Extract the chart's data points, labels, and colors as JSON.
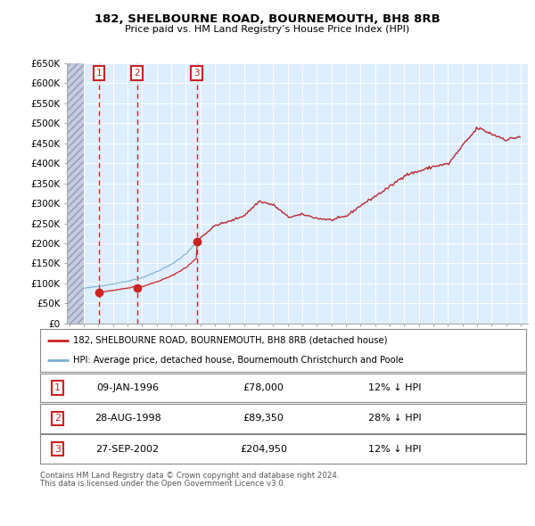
{
  "title": "182, SHELBOURNE ROAD, BOURNEMOUTH, BH8 8RB",
  "subtitle": "Price paid vs. HM Land Registry’s House Price Index (HPI)",
  "xlim": [
    1993.83,
    2025.5
  ],
  "ylim": [
    0,
    650000
  ],
  "yticks": [
    0,
    50000,
    100000,
    150000,
    200000,
    250000,
    300000,
    350000,
    400000,
    450000,
    500000,
    550000,
    600000,
    650000
  ],
  "ytick_labels": [
    "£0",
    "£50K",
    "£100K",
    "£150K",
    "£200K",
    "£250K",
    "£300K",
    "£350K",
    "£400K",
    "£450K",
    "£500K",
    "£550K",
    "£600K",
    "£650K"
  ],
  "hatch_end": 1995.0,
  "sales": [
    {
      "label": "1",
      "date": "09-JAN-1996",
      "year": 1996.03,
      "price": 78000
    },
    {
      "label": "2",
      "date": "28-AUG-1998",
      "year": 1998.65,
      "price": 89350
    },
    {
      "label": "3",
      "date": "27-SEP-2002",
      "year": 2002.74,
      "price": 204950
    }
  ],
  "sale_pct": [
    "12% ↓ HPI",
    "28% ↓ HPI",
    "12% ↓ HPI"
  ],
  "hpi_color": "#7ab0d4",
  "sale_color": "#cc2222",
  "legend_label1": "182, SHELBOURNE ROAD, BOURNEMOUTH, BH8 8RB (detached house)",
  "legend_label2": "HPI: Average price, detached house, Bournemouth Christchurch and Poole",
  "footer1": "Contains HM Land Registry data © Crown copyright and database right 2024.",
  "footer2": "This data is licensed under the Open Government Licence v3.0.",
  "plot_bg": "#ddeeff",
  "hatch_bg": "#c4cce0",
  "grid_color": "#ffffff"
}
